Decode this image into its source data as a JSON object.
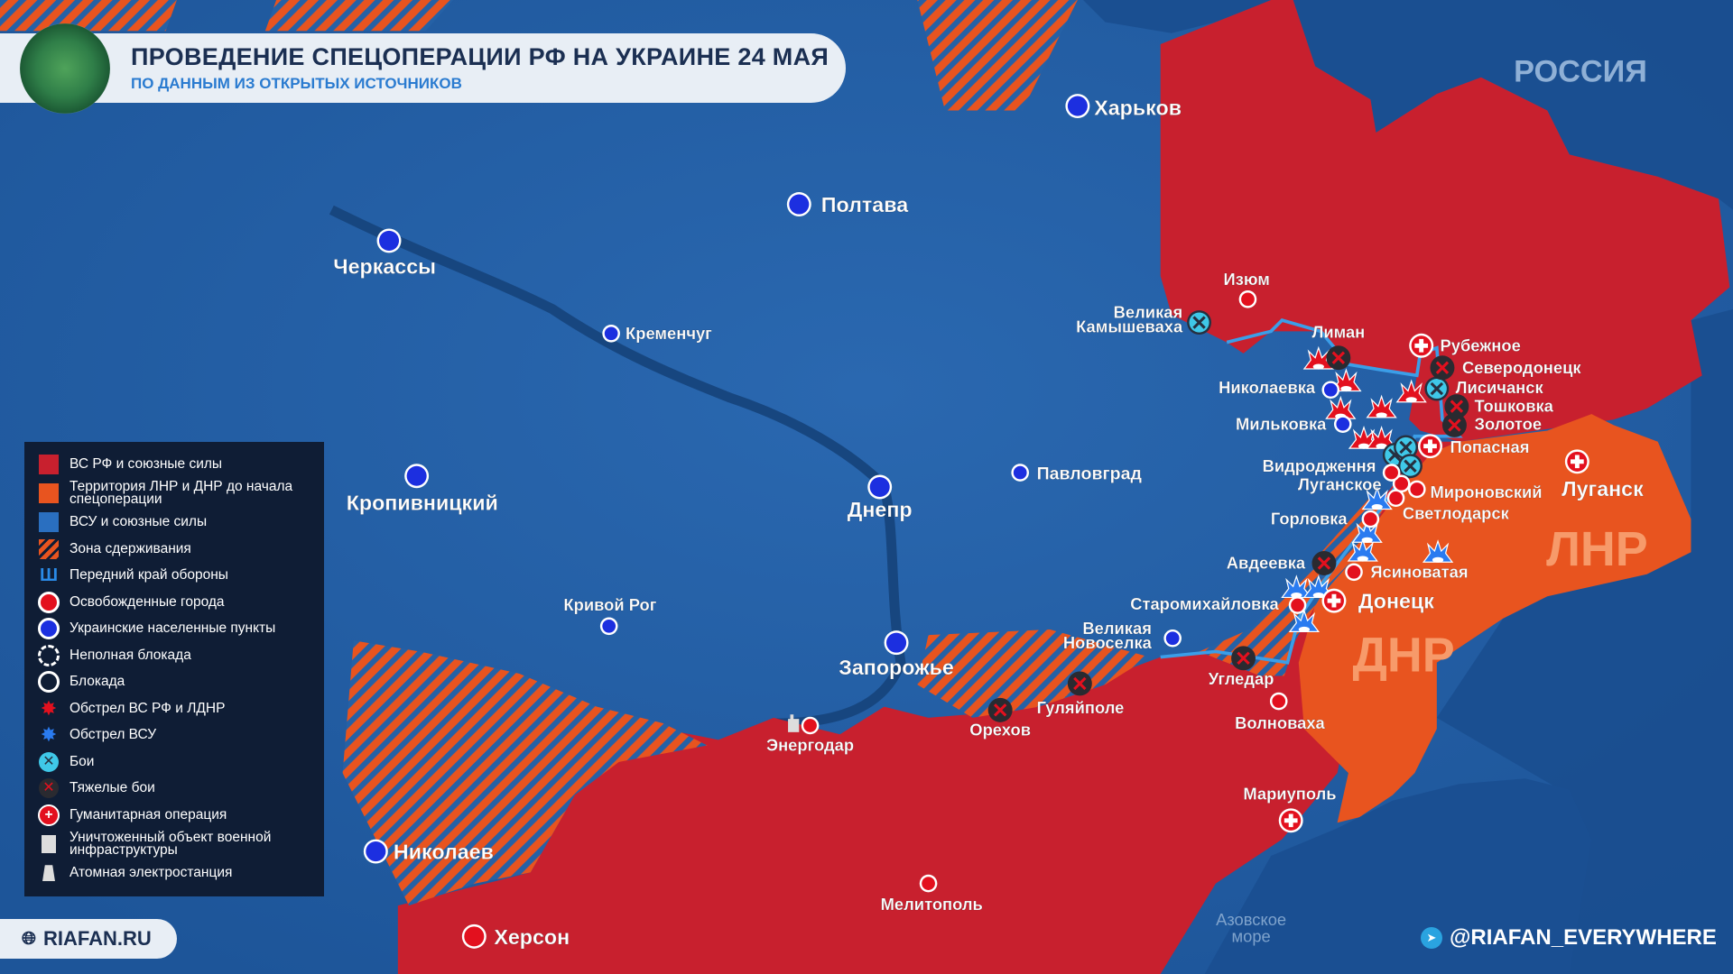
{
  "header": {
    "title": "ПРОВЕДЕНИЕ СПЕЦОПЕРАЦИИ РФ НА УКРАИНЕ 24 МАЯ",
    "subtitle": "ПО ДАННЫМ ИЗ ОТКРЫТЫХ ИСТОЧНИКОВ"
  },
  "map": {
    "country_label": "РОССИЯ",
    "regions": {
      "lnr": "ЛНР",
      "dnr": "ДНР"
    },
    "sea": [
      "Азовское",
      "море"
    ],
    "colors": {
      "ru_forces": "#c8202e",
      "lnr_dnr": "#e8541f",
      "ua_forces": "#2561a6",
      "legend_bg": "#0f1d35",
      "battle": "#3fc8e8"
    },
    "cities": [
      {
        "name": "Харьков",
        "type": "ukrainian"
      },
      {
        "name": "Полтава",
        "type": "ukrainian"
      },
      {
        "name": "Черкассы",
        "type": "ukrainian"
      },
      {
        "name": "Кременчуг",
        "type": "ukrainian"
      },
      {
        "name": "Кропивницкий",
        "type": "ukrainian"
      },
      {
        "name": "Днепр",
        "type": "ukrainian"
      },
      {
        "name": "Павловград",
        "type": "ukrainian"
      },
      {
        "name": "Кривой Рог",
        "type": "ukrainian"
      },
      {
        "name": "Запорожье",
        "type": "ukrainian"
      },
      {
        "name": "Николаев",
        "type": "ukrainian"
      },
      {
        "name": "Херсон",
        "type": "liberated"
      },
      {
        "name": "Мелитополь",
        "type": "liberated"
      },
      {
        "name": "Энергодар",
        "type": "liberated"
      },
      {
        "name": "Орехов",
        "type": "heavy-fighting"
      },
      {
        "name": "Гуляйполе",
        "type": "heavy-fighting"
      },
      {
        "name": "Угледар",
        "type": "heavy-fighting"
      },
      {
        "name": "Волноваха",
        "type": "liberated"
      },
      {
        "name": "Мариуполь",
        "type": "humanitarian"
      },
      {
        "name": "Великая Новоселка",
        "type": "ukrainian"
      },
      {
        "name": "Старомихайловка",
        "type": "liberated"
      },
      {
        "name": "Донецк",
        "type": "humanitarian"
      },
      {
        "name": "Авдеевка",
        "type": "heavy-fighting"
      },
      {
        "name": "Ясиноватая",
        "type": "liberated"
      },
      {
        "name": "Горловка",
        "type": "liberated"
      },
      {
        "name": "Светлодарск",
        "type": "liberated"
      },
      {
        "name": "Мироновский",
        "type": "liberated"
      },
      {
        "name": "Луганское",
        "type": "liberated"
      },
      {
        "name": "Видродження",
        "type": "liberated"
      },
      {
        "name": "Попасная",
        "type": "humanitarian"
      },
      {
        "name": "Золотое",
        "type": "heavy-fighting"
      },
      {
        "name": "Тошковка",
        "type": "heavy-fighting"
      },
      {
        "name": "Лисичанск",
        "type": "battle"
      },
      {
        "name": "Северодонецк",
        "type": "heavy-fighting"
      },
      {
        "name": "Рубежное",
        "type": "humanitarian"
      },
      {
        "name": "Лиман",
        "type": "heavy-fighting"
      },
      {
        "name": "Николаевка",
        "type": "ukrainian"
      },
      {
        "name": "Мильковка",
        "type": "ukrainian"
      },
      {
        "name": "Изюм",
        "type": "liberated"
      },
      {
        "name": "Великая Камышеваха",
        "type": "battle"
      },
      {
        "name": "Луганск",
        "type": "humanitarian"
      }
    ]
  },
  "legend": {
    "items": [
      {
        "icon": "square-red",
        "label": "ВС РФ и союзные силы"
      },
      {
        "icon": "square-orange",
        "label": "Территория ЛНР и ДНР до начала спецоперации"
      },
      {
        "icon": "square-blue",
        "label": "ВСУ и союзные силы"
      },
      {
        "icon": "hatch",
        "label": "Зона сдерживания"
      },
      {
        "icon": "defense-line",
        "label": "Передний край обороны"
      },
      {
        "icon": "red-dot",
        "label": "Освобожденные города"
      },
      {
        "icon": "blue-dot",
        "label": "Украинские населенные пункты"
      },
      {
        "icon": "dashed-circle",
        "label": "Неполная блокада"
      },
      {
        "icon": "circle",
        "label": "Блокада"
      },
      {
        "icon": "red-burst",
        "label": "Обстрел ВС РФ и ЛДНР"
      },
      {
        "icon": "blue-burst",
        "label": "Обстрел ВСУ"
      },
      {
        "icon": "battle",
        "label": "Бои"
      },
      {
        "icon": "heavy-x",
        "label": "Тяжелые бои"
      },
      {
        "icon": "cross",
        "label": "Гуманитарная операция"
      },
      {
        "icon": "destroyed-building",
        "label": "Уничтоженный объект военной инфраструктуры"
      },
      {
        "icon": "nuclear-plant",
        "label": "Атомная электростанция"
      }
    ]
  },
  "footer": {
    "site": "RIAFAN.RU",
    "telegram": "@RIAFAN_EVERYWHERE"
  }
}
